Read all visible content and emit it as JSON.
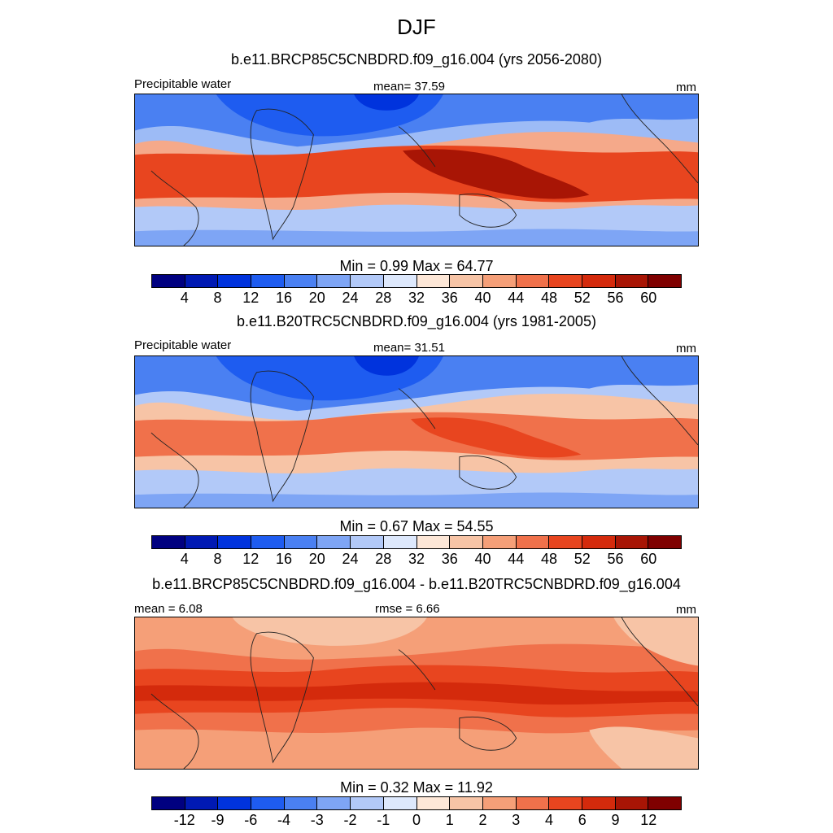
{
  "title": "DJF",
  "palette": [
    "#000080",
    "#0019b3",
    "#0033dd",
    "#1e5cf0",
    "#4a80f2",
    "#7ea5f5",
    "#b2c9f8",
    "#dde8fc",
    "#fde7d7",
    "#f7c4a6",
    "#f59f78",
    "#f0714b",
    "#e8451f",
    "#d42a0c",
    "#a81505",
    "#7f0000"
  ],
  "land_outline_color": "#222222",
  "panels": [
    {
      "subtitle": "b.e11.BRCP85C5CNBDRD.f09_g16.004 (yrs 2056-2080)",
      "left_label": "Precipitable water",
      "center_label": "mean=  37.59",
      "right_label": "mm",
      "stats": "Min =   0.99 Max =  64.77",
      "ticks": [
        "4",
        "8",
        "12",
        "16",
        "20",
        "24",
        "28",
        "32",
        "36",
        "40",
        "44",
        "48",
        "52",
        "56",
        "60"
      ]
    },
    {
      "subtitle": "b.e11.B20TRC5CNBDRD.f09_g16.004 (yrs 1981-2005)",
      "left_label": "Precipitable water",
      "center_label": "mean=  31.51",
      "right_label": "mm",
      "stats": "Min =   0.67 Max =  54.55",
      "ticks": [
        "4",
        "8",
        "12",
        "16",
        "20",
        "24",
        "28",
        "32",
        "36",
        "40",
        "44",
        "48",
        "52",
        "56",
        "60"
      ]
    },
    {
      "subtitle": "b.e11.BRCP85C5CNBDRD.f09_g16.004 - b.e11.B20TRC5CNBDRD.f09_g16.004",
      "left_label": "mean =   6.08",
      "center_label": "rmse =   6.66",
      "right_label": "mm",
      "stats": "Min =   0.32 Max =  11.92",
      "ticks": [
        "-12",
        "-9",
        "-6",
        "-4",
        "-3",
        "-2",
        "-1",
        "0",
        "1",
        "2",
        "3",
        "4",
        "6",
        "9",
        "12"
      ]
    }
  ]
}
